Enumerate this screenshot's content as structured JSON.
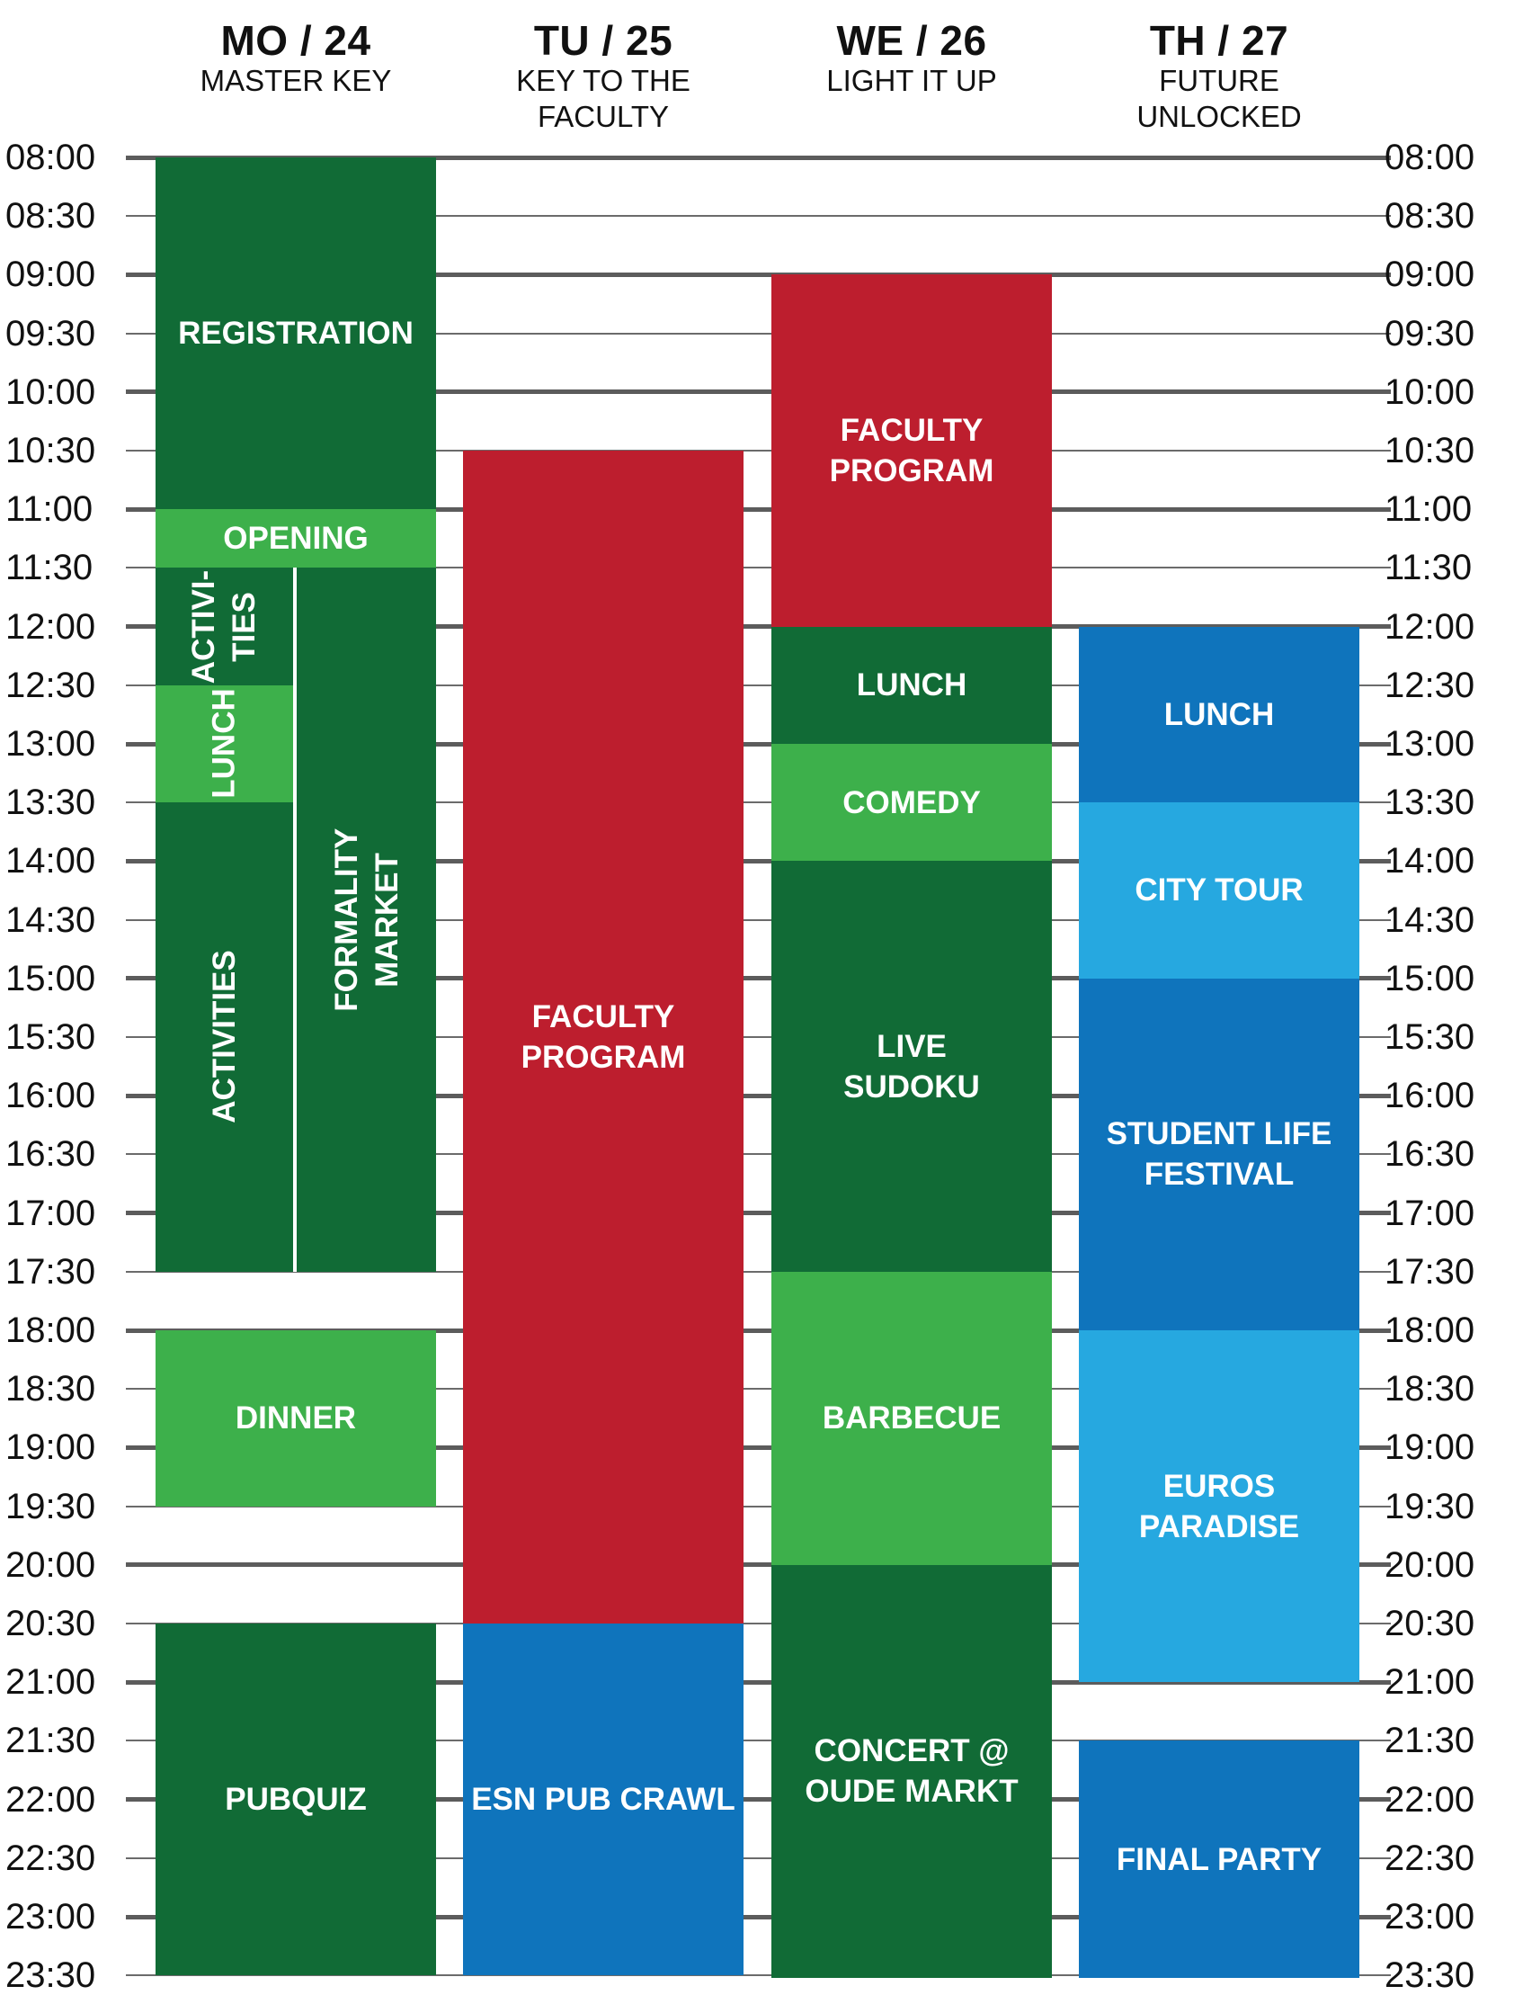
{
  "colors": {
    "dark_green": "#116b36",
    "light_green": "#3db04b",
    "red": "#bd1e2e",
    "dark_blue": "#0f74bc",
    "light_blue": "#26a8e0",
    "grid": "#5c5c5c"
  },
  "days": [
    {
      "name": "MO / 24",
      "theme": "MASTER KEY"
    },
    {
      "name": "TU / 25",
      "theme": "KEY TO THE\nFACULTY"
    },
    {
      "name": "WE / 26",
      "theme": "LIGHT IT UP"
    },
    {
      "name": "TH / 27",
      "theme": "FUTURE UNLOCKED"
    }
  ],
  "time_labels": [
    "08:00",
    "08:30",
    "09:00",
    "09:30",
    "10:00",
    "10:30",
    "11:00",
    "11:30",
    "12:00",
    "12:30",
    "13:00",
    "13:30",
    "14:00",
    "14:30",
    "15:00",
    "15:30",
    "16:00",
    "16:30",
    "17:00",
    "17:30",
    "18:00",
    "18:30",
    "19:00",
    "19:30",
    "20:00",
    "20:30",
    "21:00",
    "21:30",
    "22:00",
    "22:30",
    "23:00",
    "23:30"
  ],
  "events": [
    {
      "day": 0,
      "lane": "full",
      "start": "08:00",
      "end": "11:00",
      "label": "REGISTRATION",
      "color": "dark_green"
    },
    {
      "day": 0,
      "lane": "full",
      "start": "11:00",
      "end": "11:30",
      "label": "OPENING",
      "color": "light_green"
    },
    {
      "day": 0,
      "lane": "left",
      "start": "11:30",
      "end": "12:30",
      "label": "ACTIVI-\nTIES",
      "color": "dark_green",
      "vertical": true
    },
    {
      "day": 0,
      "lane": "left",
      "start": "12:30",
      "end": "13:30",
      "label": "LUNCH",
      "color": "light_green",
      "vertical": true
    },
    {
      "day": 0,
      "lane": "left",
      "start": "13:30",
      "end": "17:30",
      "label": "ACTIVITIES",
      "color": "dark_green",
      "vertical": true
    },
    {
      "day": 0,
      "lane": "right",
      "start": "11:30",
      "end": "17:30",
      "label": "FORMALITY MARKET",
      "color": "dark_green",
      "vertical": true
    },
    {
      "day": 0,
      "lane": "full",
      "start": "18:00",
      "end": "19:30",
      "label": "DINNER",
      "color": "light_green"
    },
    {
      "day": 0,
      "lane": "full",
      "start": "20:30",
      "end": "23:30",
      "label": "PUBQUIZ",
      "color": "dark_green"
    },
    {
      "day": 1,
      "lane": "full",
      "start": "10:30",
      "end": "20:30",
      "label": "FACULTY\nPROGRAM",
      "color": "red"
    },
    {
      "day": 1,
      "lane": "full",
      "start": "20:30",
      "end": "23:30",
      "label": "ESN PUB CRAWL",
      "color": "dark_blue"
    },
    {
      "day": 2,
      "lane": "full",
      "start": "09:00",
      "end": "12:00",
      "label": "FACULTY\nPROGRAM",
      "color": "red"
    },
    {
      "day": 2,
      "lane": "full",
      "start": "12:00",
      "end": "13:00",
      "label": "LUNCH",
      "color": "dark_green"
    },
    {
      "day": 2,
      "lane": "full",
      "start": "13:00",
      "end": "14:00",
      "label": "COMEDY",
      "color": "light_green"
    },
    {
      "day": 2,
      "lane": "full",
      "start": "14:00",
      "end": "17:30",
      "label": "LIVE\nSUDOKU",
      "color": "dark_green"
    },
    {
      "day": 2,
      "lane": "full",
      "start": "17:30",
      "end": "20:00",
      "label": "BARBECUE",
      "color": "light_green"
    },
    {
      "day": 2,
      "lane": "full",
      "start": "20:00",
      "end": "00:00",
      "label": "CONCERT @\nOUDE MARKT",
      "color": "dark_green"
    },
    {
      "day": 3,
      "lane": "full",
      "start": "12:00",
      "end": "13:30",
      "label": "LUNCH",
      "color": "dark_blue"
    },
    {
      "day": 3,
      "lane": "full",
      "start": "13:30",
      "end": "15:00",
      "label": "CITY TOUR",
      "color": "light_blue"
    },
    {
      "day": 3,
      "lane": "full",
      "start": "15:00",
      "end": "18:00",
      "label": "STUDENT LIFE\nFESTIVAL",
      "color": "dark_blue"
    },
    {
      "day": 3,
      "lane": "full",
      "start": "18:00",
      "end": "21:00",
      "label": "EUROS\nPARADISE",
      "color": "light_blue"
    },
    {
      "day": 3,
      "lane": "full",
      "start": "21:30",
      "end": "00:00",
      "label": "FINAL PARTY",
      "color": "dark_blue"
    }
  ]
}
